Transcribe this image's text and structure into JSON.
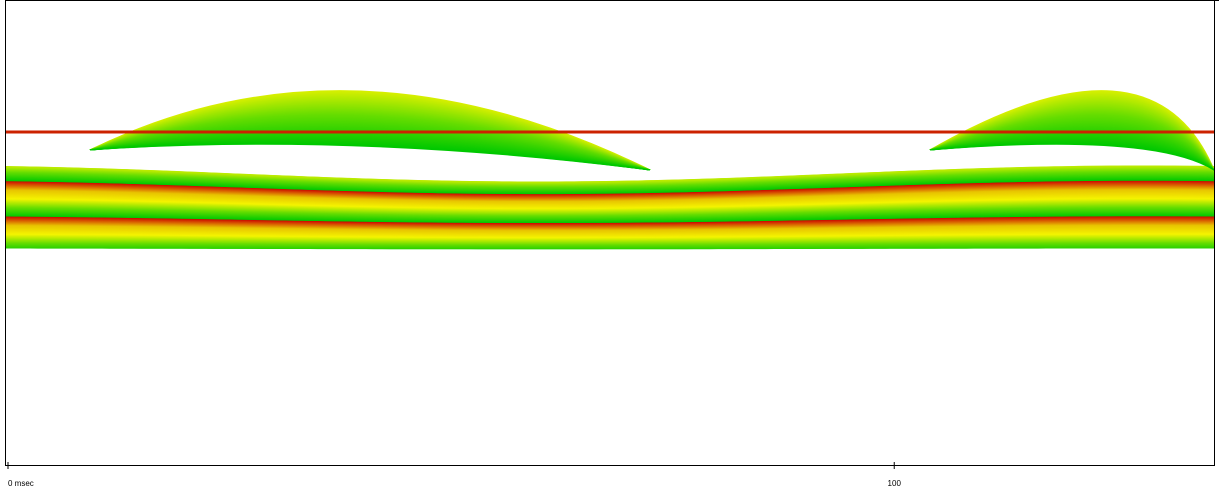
{
  "chart_data": {
    "type": "line",
    "title": "",
    "xlabel": "",
    "ylabel": "",
    "x_unit": "msec",
    "x_ticks": [
      {
        "value": 0,
        "label": "0 msec"
      },
      {
        "value": 100,
        "label": "100"
      }
    ],
    "xlim": [
      0,
      136
    ],
    "grid": false,
    "legend": "none",
    "colors": {
      "frame": "#000000",
      "background": "#ffffff",
      "ramp": [
        "#cc0a00",
        "#e8c400",
        "#f4f400",
        "#66dd00",
        "#00c800"
      ],
      "flat_line": "#cc2200"
    },
    "series_groups": [
      {
        "description_role": "band_sweep",
        "line_count": 520
      },
      {
        "description_role": "upper_arcs",
        "line_count": 110
      },
      {
        "description_role": "flat_trace",
        "line_count": 3
      }
    ]
  }
}
